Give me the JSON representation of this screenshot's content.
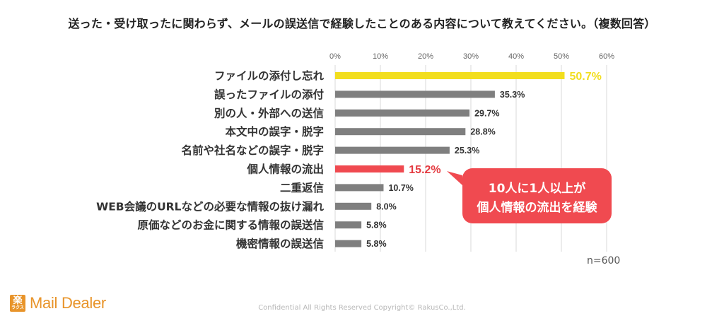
{
  "title": "送った・受け取ったに関わらず、メールの誤送信で経験したことのある内容について教えてください。（複数回答）",
  "sample_size": "n=600",
  "callout": {
    "line1": "10人に1人以上が",
    "line2": "個人情報の流出を経験",
    "color": "#f04a50"
  },
  "logo": {
    "mark_main": "楽",
    "mark_sub": "ラクス",
    "text": "Mail Dealer"
  },
  "copyright": "Confidential All Rights Reserved Copyright© RakusCo.,Ltd.",
  "colors": {
    "default_bar": "#7f7f7f",
    "top_bar": "#f2de1e",
    "highlight_bar": "#f04a50"
  },
  "chart_data": {
    "type": "bar",
    "orientation": "horizontal",
    "categories": [
      "ファイルの添付し忘れ",
      "誤ったファイルの添付",
      "別の人・外部への送信",
      "本文中の誤字・脱字",
      "名前や社名などの誤字・脱字",
      "個人情報の流出",
      "二重返信",
      "WEB会議のURLなどの必要な情報の抜け漏れ",
      "原価などのお金に関する情報の誤送信",
      "機密情報の誤送信"
    ],
    "values": [
      50.7,
      35.3,
      29.7,
      28.8,
      25.3,
      15.2,
      10.7,
      8.0,
      5.8,
      5.8
    ],
    "value_labels": [
      "50.7%",
      "35.3%",
      "29.7%",
      "28.8%",
      "25.3%",
      "15.2%",
      "10.7%",
      "8.0%",
      "5.8%",
      "5.8%"
    ],
    "bar_colors": [
      "#f2de1e",
      "#7f7f7f",
      "#7f7f7f",
      "#7f7f7f",
      "#7f7f7f",
      "#f04a50",
      "#7f7f7f",
      "#7f7f7f",
      "#7f7f7f",
      "#7f7f7f"
    ],
    "label_colors": [
      "#f2de1e",
      "#333333",
      "#333333",
      "#333333",
      "#333333",
      "#e43a40",
      "#333333",
      "#333333",
      "#333333",
      "#333333"
    ],
    "xlim": [
      0,
      60
    ],
    "ticks": [
      0,
      10,
      20,
      30,
      40,
      50,
      60
    ],
    "tick_labels": [
      "0%",
      "10%",
      "20%",
      "30%",
      "40%",
      "50%",
      "60%"
    ],
    "grid": true,
    "xlabel": "",
    "ylabel": ""
  }
}
